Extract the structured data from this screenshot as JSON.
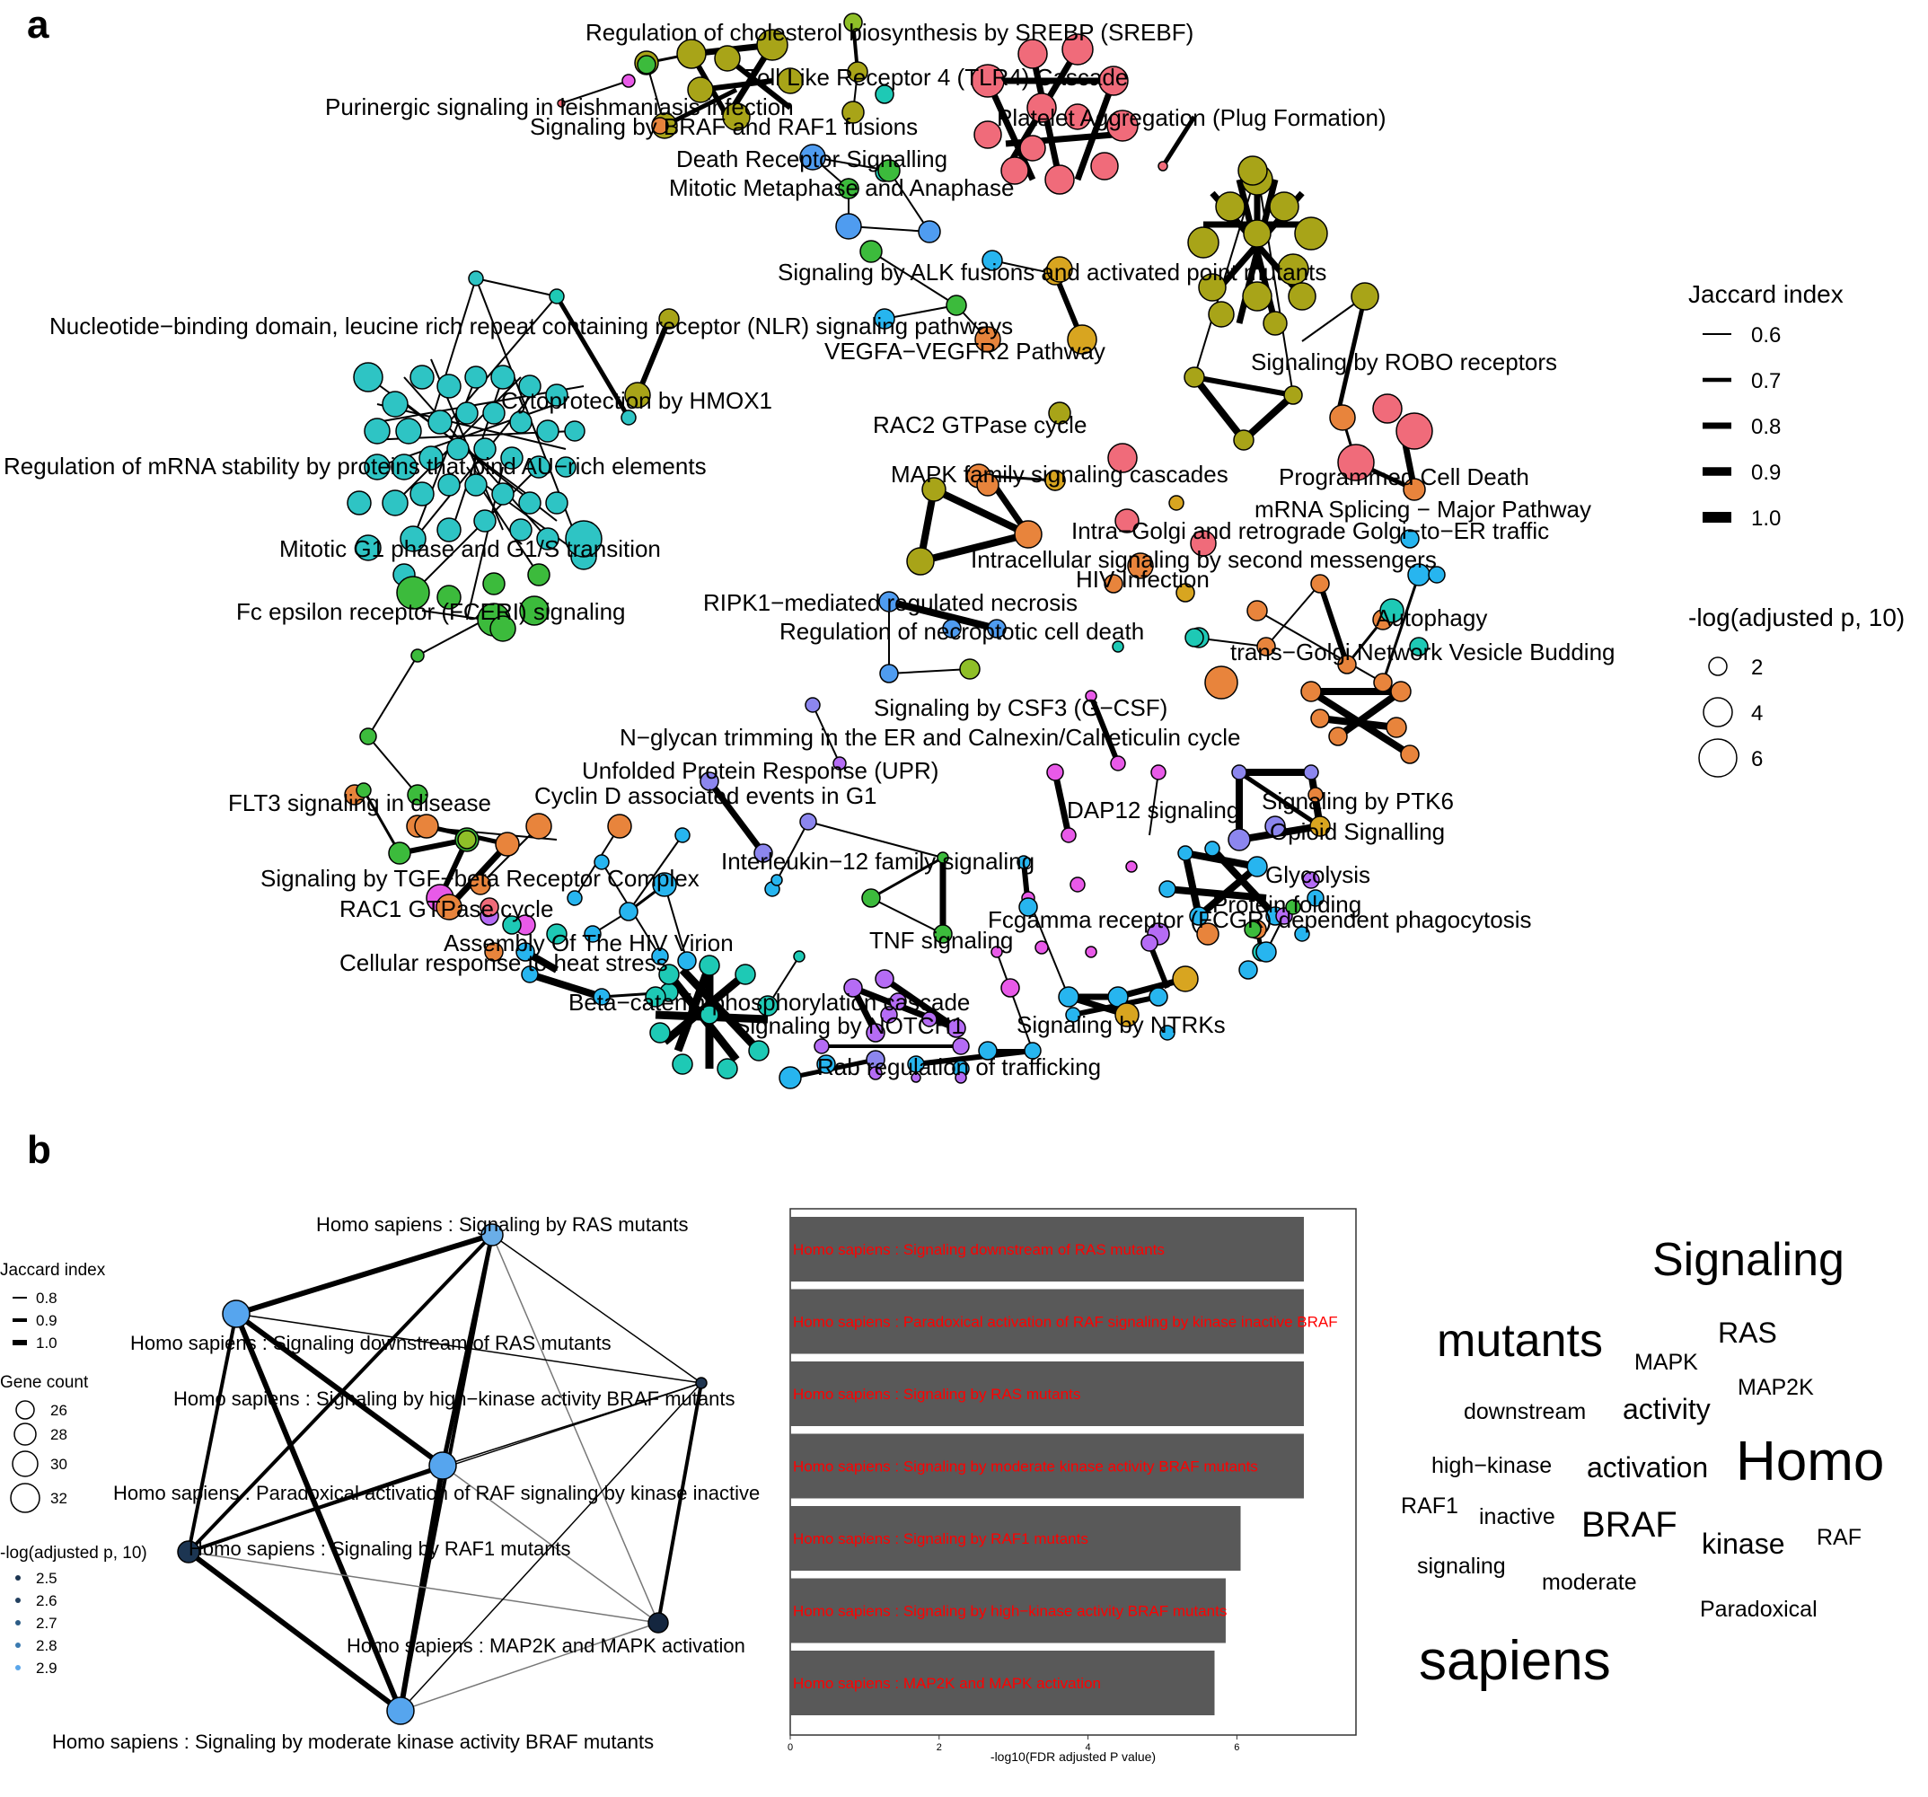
{
  "panel_a": {
    "letter": "a",
    "labels": [
      "Regulation of cholesterol biosynthesis by SREBP (SREBF)",
      "Toll Like Receptor 4 (TLR4) Cascade",
      "Purinergic signaling in leishmaniasis infection",
      "Platelet Aggregation (Plug Formation)",
      "Signaling by BRAF and RAF1 fusions",
      "Death Receptor Signalling",
      "Mitotic Metaphase and Anaphase",
      "Signaling by ALK fusions and activated point mutants",
      "Nucleotide−binding domain, leucine rich repeat containing receptor (NLR) signaling pathways",
      "VEGFA−VEGFR2 Pathway",
      "Signaling by ROBO receptors",
      "Cytoprotection by HMOX1",
      "RAC2 GTPase cycle",
      "Regulation of mRNA stability by proteins that bind AU−rich elements",
      "MAPK family signaling cascades",
      "Programmed Cell Death",
      "mRNA Splicing − Major Pathway",
      "Intra−Golgi and retrograde Golgi−to−ER traffic",
      "Mitotic G1 phase and G1/S transition",
      "Intracellular signaling by second messengers",
      "HIV Infection",
      "RIPK1−mediated regulated necrosis",
      "Autophagy",
      "Fc epsilon receptor (FCERI) signaling",
      "Regulation of necroptotic cell death",
      "trans−Golgi Network Vesicle Budding",
      "Signaling by CSF3 (G−CSF)",
      "N−glycan trimming in the ER and Calnexin/Calreticulin cycle",
      "Unfolded Protein Response (UPR)",
      "Cyclin D associated events in G1",
      "FLT3 signaling in disease",
      "DAP12 signaling",
      "Signaling by PTK6",
      "Opioid Signalling",
      "Interleukin−12 family signaling",
      "Glycolysis",
      "Signaling by TGF−beta Receptor Complex",
      "Protein folding",
      "RAC1 GTPase cycle",
      "Fcgamma receptor (FCGR) dependent phagocytosis",
      "Assembly Of The HIV Virion",
      "TNF signaling",
      "Cellular response to heat stress",
      "Beta−catenin phosphorylation cascade",
      "Signaling by NOTCH1",
      "Signaling by NTRKs",
      "Rab regulation of trafficking"
    ],
    "legend": {
      "jaccard_title": "Jaccard index",
      "jaccard_values": [
        "0.6",
        "0.7",
        "0.8",
        "0.9",
        "1.0"
      ],
      "size_title": "-log(adjusted p, 10)",
      "size_values": [
        "2",
        "4",
        "6"
      ]
    }
  },
  "panel_b": {
    "letter": "b",
    "network_labels": [
      "Homo sapiens : Signaling by RAS mutants",
      "Homo sapiens : Signaling downstream of RAS mutants",
      "Homo sapiens : Signaling by high−kinase activity BRAF mutants",
      "Homo sapiens : Paradoxical activation of RAF signaling by kinase inactive",
      "Homo sapiens : Signaling by RAF1 mutants",
      "Homo sapiens : MAP2K and MAPK activation",
      "Homo sapiens : Signaling by moderate kinase activity BRAF mutants"
    ],
    "legend": {
      "jaccard_title": "Jaccard index",
      "jaccard_values": [
        "0.8",
        "0.9",
        "1.0"
      ],
      "gene_title": "Gene count",
      "gene_values": [
        "26",
        "28",
        "30",
        "32"
      ],
      "p_title": "-log(adjusted p, 10)",
      "p_values": [
        "2.5",
        "2.6",
        "2.7",
        "2.8",
        "2.9"
      ]
    },
    "word_cloud": {
      "words": [
        "Signaling",
        "mutants",
        "RAS",
        "MAPK",
        "MAP2K",
        "downstream",
        "activity",
        "high−kinase",
        "activation",
        "Homo",
        "RAF1",
        "inactive",
        "BRAF",
        "kinase",
        "RAF",
        "signaling",
        "moderate",
        "Paradoxical",
        "sapiens"
      ],
      "weights": [
        5,
        5,
        3,
        2,
        2,
        2,
        3,
        2,
        3,
        6,
        2,
        2,
        4,
        3,
        2,
        2,
        2,
        2,
        6
      ]
    }
  },
  "chart_data": {
    "type": "bar",
    "orientation": "horizontal",
    "categories": [
      "Homo sapiens : Signaling downstream of RAS mutants",
      "Homo sapiens : Paradoxical activation of RAF signaling by kinase inactive BRAF",
      "Homo sapiens : Signaling by RAS mutants",
      "Homo sapiens : Signaling by moderate kinase activity BRAF mutants",
      "Homo sapiens : Signaling by RAF1 mutants",
      "Homo sapiens : Signaling by high−kinase activity BRAF mutants",
      "Homo sapiens : MAP2K and MAPK activation"
    ],
    "values": [
      6.9,
      6.9,
      6.9,
      6.9,
      6.05,
      5.85,
      5.7
    ],
    "xlabel": "-log10(FDR adjusted P value)",
    "xticks": [
      "0",
      "2",
      "4",
      "6"
    ],
    "xlim": [
      0,
      7.6
    ],
    "bar_color": "#595959",
    "label_color": "#ff0000",
    "grid": false
  }
}
